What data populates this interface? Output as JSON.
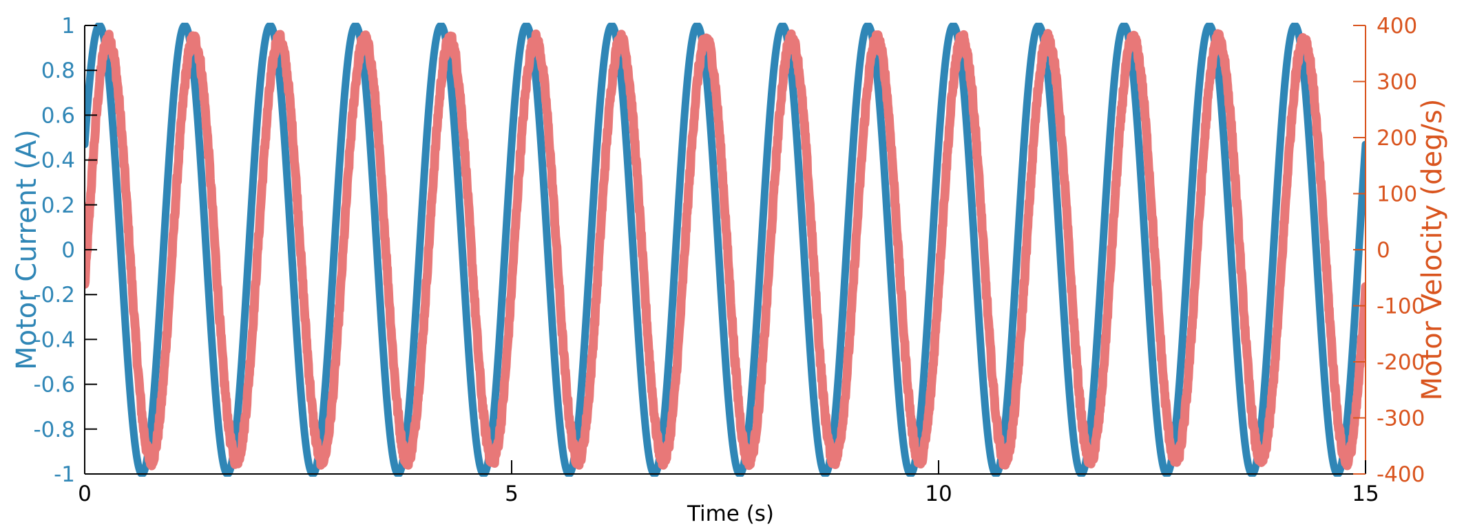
{
  "chart_data": {
    "type": "line",
    "title": "",
    "xlabel": "Time (s)",
    "ylabel_left": "Motor Current (A)",
    "ylabel_right": "Motor Velocity (deg/s)",
    "xlim": [
      0,
      15
    ],
    "ylim_left": [
      -1,
      1
    ],
    "ylim_right": [
      -400,
      400
    ],
    "x_ticks": [
      0,
      5,
      10,
      15
    ],
    "x_tick_labels": [
      "0",
      "5",
      "10",
      "15"
    ],
    "y_left_ticks": [
      -1,
      -0.8,
      -0.6,
      -0.4,
      -0.2,
      0,
      0.2,
      0.4,
      0.6,
      0.8,
      1
    ],
    "y_left_tick_labels": [
      "-1",
      "-0.8",
      "-0.6",
      "-0.4",
      "-0.2",
      "0",
      "0.2",
      "0.4",
      "0.6",
      "0.8",
      "1"
    ],
    "y_right_ticks": [
      -400,
      -300,
      -200,
      -100,
      0,
      100,
      200,
      300,
      400
    ],
    "y_right_tick_labels": [
      "-400",
      "-300",
      "-200",
      "-100",
      "0",
      "100",
      "200",
      "300",
      "400"
    ],
    "grid": false,
    "series": [
      {
        "name": "Motor Current",
        "axis": "left",
        "color": "#2f86b6",
        "function": "sine",
        "amplitude": 1,
        "frequency_hz": 1,
        "phase_deg": 28,
        "offset": 0
      },
      {
        "name": "Motor Velocity",
        "axis": "right",
        "color": "#e87878",
        "function": "sine",
        "amplitude": 375,
        "frequency_hz": 1,
        "phase_deg": -10,
        "offset": 0,
        "noisy": true
      }
    ],
    "colors": {
      "left_axis": "#2f86b6",
      "right_axis": "#d9541e",
      "axis_black": "#000000"
    }
  }
}
